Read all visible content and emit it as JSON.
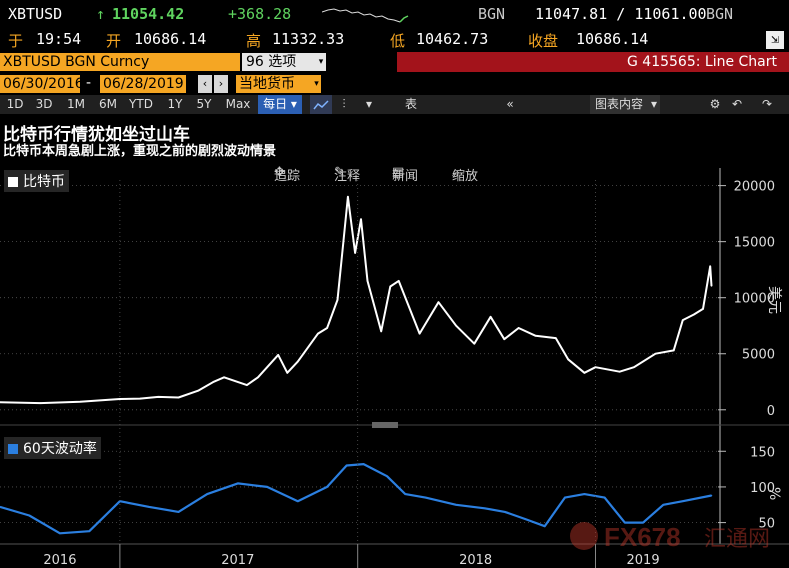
{
  "quote": {
    "ticker": "XBTUSD",
    "last": "11054.42",
    "change": "+368.28",
    "bgn_left": "BGN",
    "bid_ask": "11047.81 / 11061.00",
    "bgn_right": "BGN",
    "at_label": "于",
    "time": "19:54",
    "open_label": "开",
    "open": "10686.14",
    "high_label": "高",
    "high": "11332.33",
    "low_label": "低",
    "low": "10462.73",
    "close_label": "收盘",
    "close": "10686.14"
  },
  "security_bar": {
    "security": "XBTUSD BGN Curncy",
    "options_number": "96",
    "options_label": "选项",
    "function_label": "G 415565: Line Chart"
  },
  "date_bar": {
    "start_date": "06/30/2016",
    "separator": "-",
    "end_date": "06/28/2019",
    "currency_label": "当地货币"
  },
  "toolbar": {
    "periods": [
      "1D",
      "3D",
      "1M",
      "6M",
      "YTD",
      "1Y",
      "5Y",
      "Max"
    ],
    "frequency": "每日",
    "table_label": "表",
    "chart_content_label": "图表内容"
  },
  "headline": {
    "title": "比特币行情犹如坐过山车",
    "subtitle": "比特币本周急剧上涨，重现之前的剧烈波动情景"
  },
  "chart_tools": {
    "track": "追踪",
    "annotate": "注释",
    "news": "新闻",
    "zoom": "缩放"
  },
  "watermark": {
    "text": "FX678",
    "cn": "汇通网"
  },
  "chart_data": [
    {
      "type": "line",
      "legend": "比特币",
      "ylabel": "美元",
      "ylim": [
        -1000,
        20500
      ],
      "yticks": [
        0,
        5000,
        10000,
        15000,
        20000
      ],
      "color": "#ffffff",
      "grid": true,
      "legend_position": "top-left",
      "x": [
        "2016-07-01",
        "2016-09-01",
        "2016-11-01",
        "2017-01-01",
        "2017-02-01",
        "2017-03-01",
        "2017-04-01",
        "2017-05-01",
        "2017-05-25",
        "2017-06-10",
        "2017-07-15",
        "2017-08-01",
        "2017-09-01",
        "2017-09-15",
        "2017-10-01",
        "2017-11-01",
        "2017-11-15",
        "2017-12-01",
        "2017-12-10",
        "2017-12-17",
        "2017-12-28",
        "2018-01-06",
        "2018-01-16",
        "2018-02-06",
        "2018-02-20",
        "2018-03-05",
        "2018-04-06",
        "2018-05-05",
        "2018-06-01",
        "2018-06-29",
        "2018-07-24",
        "2018-08-14",
        "2018-09-05",
        "2018-10-01",
        "2018-11-01",
        "2018-11-20",
        "2018-12-15",
        "2019-01-01",
        "2019-02-07",
        "2019-03-01",
        "2019-04-03",
        "2019-05-01",
        "2019-05-15",
        "2019-06-01",
        "2019-06-15",
        "2019-06-26",
        "2019-06-28"
      ],
      "y": [
        680,
        600,
        720,
        960,
        1000,
        1150,
        1100,
        1700,
        2500,
        2900,
        2200,
        2900,
        4900,
        3300,
        4300,
        6800,
        7300,
        9800,
        15000,
        19000,
        14000,
        17000,
        11500,
        7000,
        11000,
        11500,
        6800,
        9600,
        7500,
        5900,
        8300,
        6300,
        7300,
        6600,
        6400,
        4500,
        3300,
        3800,
        3400,
        3800,
        5000,
        5300,
        8000,
        8500,
        9000,
        12800,
        11054
      ]
    },
    {
      "type": "line",
      "legend": "60天波动率",
      "ylabel": "%",
      "ylim": [
        20,
        170
      ],
      "yticks": [
        50,
        100,
        150
      ],
      "color": "#2b7fe0",
      "grid": true,
      "legend_position": "top-left",
      "x": [
        "2016-07-01",
        "2016-08-15",
        "2016-10-01",
        "2016-11-15",
        "2017-01-01",
        "2017-02-15",
        "2017-04-01",
        "2017-05-15",
        "2017-07-01",
        "2017-08-15",
        "2017-10-01",
        "2017-11-15",
        "2017-12-15",
        "2018-01-10",
        "2018-02-15",
        "2018-03-15",
        "2018-04-15",
        "2018-06-01",
        "2018-07-15",
        "2018-08-15",
        "2018-09-15",
        "2018-10-15",
        "2018-11-15",
        "2018-12-15",
        "2019-01-15",
        "2019-02-15",
        "2019-03-15",
        "2019-04-15",
        "2019-05-15",
        "2019-06-28"
      ],
      "y": [
        72,
        60,
        35,
        38,
        80,
        72,
        65,
        90,
        105,
        100,
        80,
        100,
        130,
        132,
        115,
        90,
        85,
        75,
        70,
        65,
        55,
        45,
        85,
        90,
        85,
        50,
        50,
        75,
        80,
        88
      ]
    }
  ],
  "x_axis": {
    "labels": [
      "2016",
      "2017",
      "2018",
      "2019"
    ]
  }
}
